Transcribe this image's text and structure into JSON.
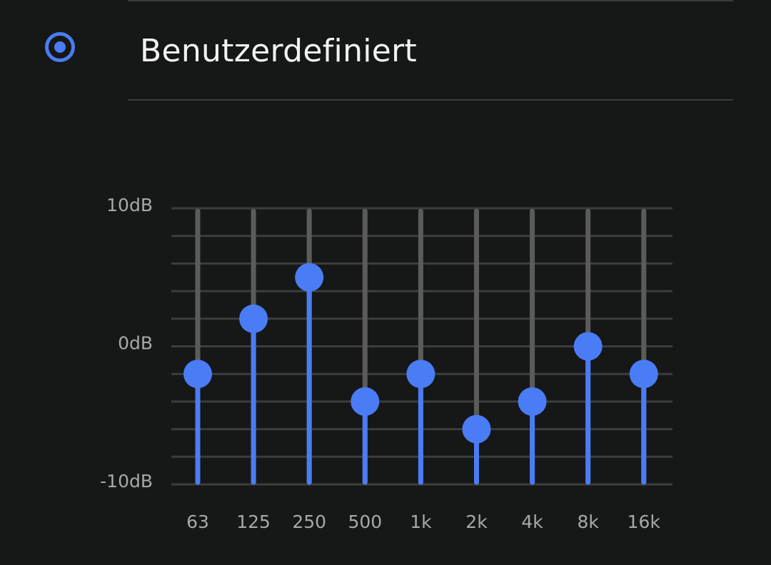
{
  "preset": {
    "label": "Benutzerdefiniert",
    "selected": true
  },
  "colors": {
    "accent": "#4a7cf5",
    "track": "#5b5b5b",
    "grid": "#3c3d3d",
    "background": "#161717"
  },
  "chart_data": {
    "type": "equalizer",
    "y_tick_labels": [
      "10dB",
      "0dB",
      "-10dB"
    ],
    "ylim": [
      -10,
      10
    ],
    "grid_step_db": 2,
    "bands": [
      "63",
      "125",
      "250",
      "500",
      "1k",
      "2k",
      "4k",
      "8k",
      "16k"
    ],
    "values_db": [
      -2,
      2,
      5,
      -4,
      -2,
      -6,
      -4,
      0,
      -2
    ]
  }
}
